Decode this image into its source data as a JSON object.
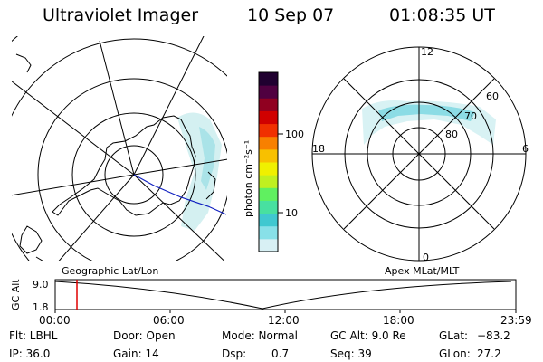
{
  "header": {
    "instrument": "Ultraviolet Imager",
    "date": "10 Sep 07",
    "time": "01:08:35 UT"
  },
  "left_map": {
    "label": "Geographic Lat/Lon"
  },
  "right_map": {
    "label": "Apex MLat/MLT",
    "mlt_labels": {
      "top": "12",
      "left": "18",
      "right": "6",
      "bottom": "0"
    },
    "lat_labels": [
      "60",
      "70",
      "80"
    ]
  },
  "colorbar": {
    "unit_label": "photon cm⁻²s⁻¹",
    "ticks": [
      "100",
      "10"
    ],
    "colors": [
      "#d8f0f4",
      "#88e0e8",
      "#40c8d0",
      "#48e0a0",
      "#60f060",
      "#c0f020",
      "#f0f000",
      "#f8c000",
      "#f88000",
      "#f03000",
      "#d00000",
      "#900020",
      "#500040",
      "#200030"
    ]
  },
  "timeline": {
    "y_axis_label": "GC Alt",
    "y_ticks": [
      "9.0",
      "1.8"
    ],
    "x_ticks": [
      "00:00",
      "06:00",
      "12:00",
      "18:00",
      "23:59"
    ],
    "marker_color": "#e00000"
  },
  "status": {
    "filter": "Flt: LBHL",
    "ip": "IP: 36.0",
    "door": "Door: Open",
    "gain": "Gain: 14",
    "mode": "Mode: Normal",
    "dsp_label": "Dsp:",
    "dsp_value": "0.7",
    "gc_alt": "GC Alt: 9.0 Re",
    "seq": "Seq: 39",
    "glat_label": "GLat:",
    "glat_value": "−83.2",
    "glon_label": "GLon:",
    "glon_value": "27.2"
  }
}
